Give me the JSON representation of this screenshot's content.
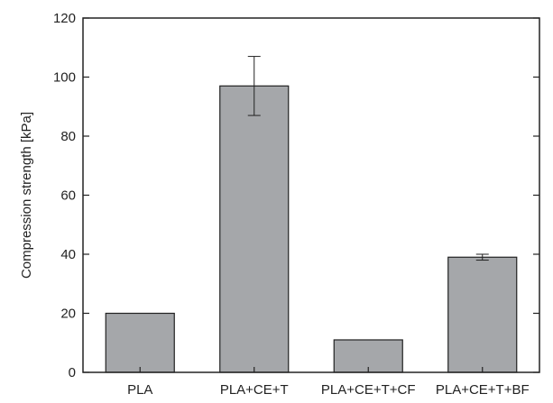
{
  "chart_data": {
    "type": "bar",
    "categories": [
      "PLA",
      "PLA+CE+T",
      "PLA+CE+T+CF",
      "PLA+CE+T+BF"
    ],
    "values": [
      20,
      97,
      11,
      39
    ],
    "error_bars": [
      {
        "low": 20,
        "high": 20
      },
      {
        "low": 87,
        "high": 107
      },
      {
        "low": 11,
        "high": 11
      },
      {
        "low": 38,
        "high": 40
      }
    ],
    "title": "",
    "xlabel": "",
    "ylabel": "Compression strength [kPa]",
    "ylim": [
      0,
      120
    ],
    "yticks": [
      0,
      20,
      40,
      60,
      80,
      100,
      120
    ],
    "grid": false,
    "legend": "none",
    "bar_color": "#a5a7aa",
    "edge_color": "#222222"
  }
}
